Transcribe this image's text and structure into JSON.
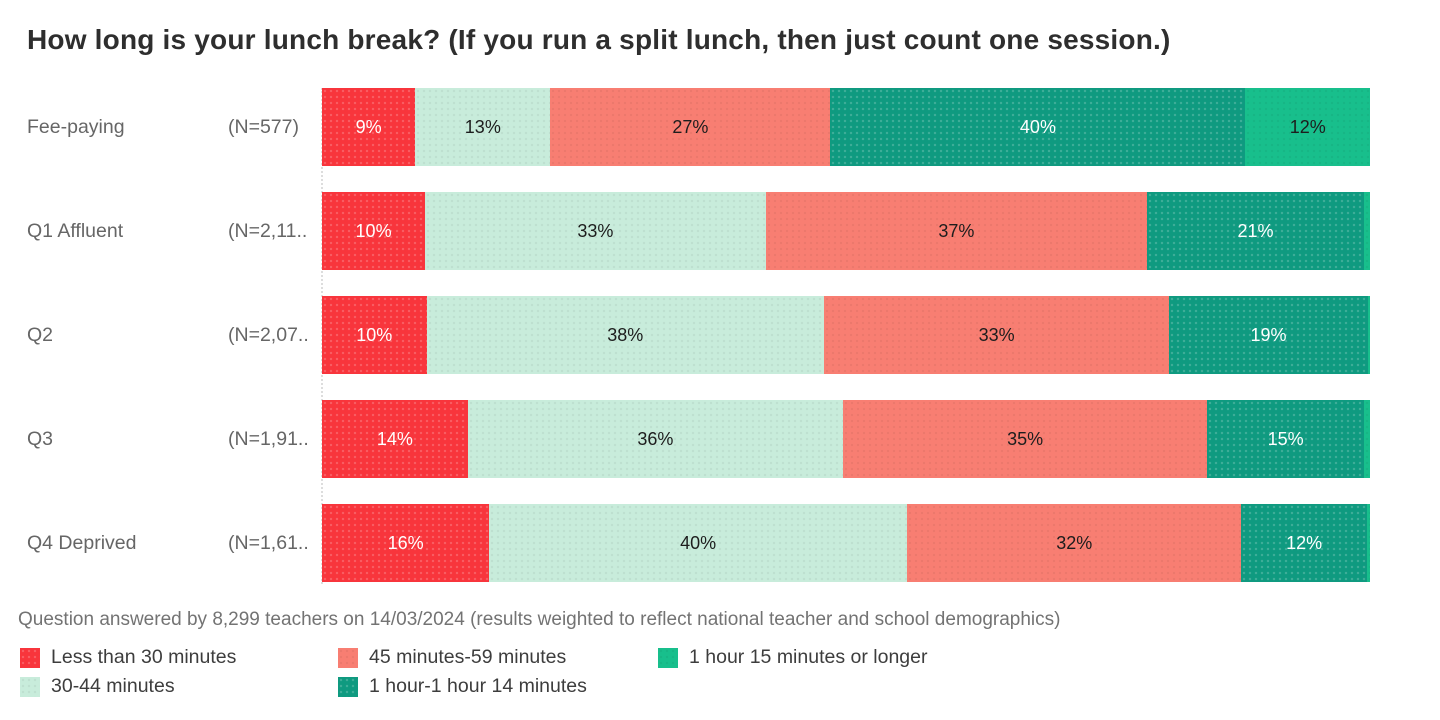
{
  "title": "How long is your lunch break? (If you run a split lunch, then just count one session.)",
  "footnote": "Question answered by 8,299 teachers on 14/03/2024 (results weighted to reflect national teacher and school demographics)",
  "chart_data": {
    "type": "bar",
    "variant": "horizontal-stacked-percent",
    "grid": false,
    "legend_position": "bottom",
    "series_names": [
      "Less than 30 minutes",
      "30-44 minutes",
      "45 minutes-59 minutes",
      "1 hour-1 hour 14 minutes",
      "1 hour 15 minutes or longer"
    ],
    "series_keys": [
      "less-than-30-min",
      "30-44-min",
      "45-59-min",
      "1hr-1hr14",
      "1hr15-or-longer"
    ],
    "series_colors": [
      "#f8353c",
      "#c8ecdb",
      "#f87e72",
      "#0f9a80",
      "#18bf8c"
    ],
    "series_label_colors": [
      "#ffffff",
      "#1d1d1d",
      "#1d1d1d",
      "#ffffff",
      "#1d1d1d"
    ],
    "rows": [
      {
        "category": "Fee-paying",
        "n_label": "(N=577)",
        "values": [
          9,
          13,
          27,
          40,
          12
        ],
        "labels": [
          "9%",
          "13%",
          "27%",
          "40%",
          "12%"
        ]
      },
      {
        "category": "Q1 Affluent",
        "n_label": "(N=2,11..",
        "values": [
          10,
          33,
          37,
          21,
          0.6
        ],
        "labels": [
          "10%",
          "33%",
          "37%",
          "21%",
          ""
        ]
      },
      {
        "category": "Q2",
        "n_label": "(N=2,07..",
        "values": [
          10,
          38,
          33,
          19,
          0.2
        ],
        "labels": [
          "10%",
          "38%",
          "33%",
          "19%",
          ""
        ]
      },
      {
        "category": "Q3",
        "n_label": "(N=1,91..",
        "values": [
          14,
          36,
          35,
          15,
          0.6
        ],
        "labels": [
          "14%",
          "36%",
          "35%",
          "15%",
          ""
        ]
      },
      {
        "category": "Q4 Deprived",
        "n_label": "(N=1,61..",
        "values": [
          16,
          40,
          32,
          12,
          0.3
        ],
        "labels": [
          "16%",
          "40%",
          "32%",
          "12%",
          ""
        ]
      }
    ]
  }
}
